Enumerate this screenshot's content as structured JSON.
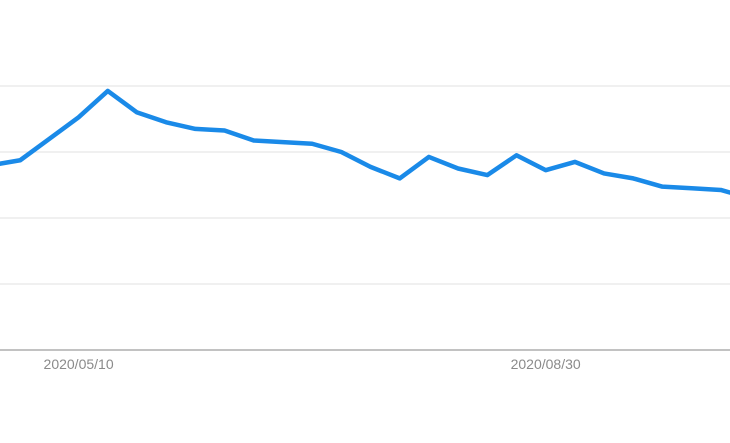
{
  "chart_data": {
    "type": "line",
    "title": "",
    "xlabel": "",
    "ylabel": "",
    "grid": true,
    "legend": "none",
    "x_tick_labels": [
      {
        "label": "2020/05/10",
        "index": 3
      },
      {
        "label": "2020/08/30",
        "index": 19
      }
    ],
    "ylim": [
      0,
      100
    ],
    "y_gridlines": [
      20,
      40,
      60,
      80
    ],
    "series": [
      {
        "color": "#1a8ae8",
        "values": [
          56,
          57.5,
          64,
          70.5,
          78.5,
          72,
          69,
          67,
          66.5,
          63.5,
          63,
          62.5,
          60,
          55.5,
          52,
          58.5,
          55,
          53,
          59,
          54.5,
          57,
          53.5,
          52,
          49.5,
          49,
          48.5,
          46
        ]
      }
    ]
  }
}
